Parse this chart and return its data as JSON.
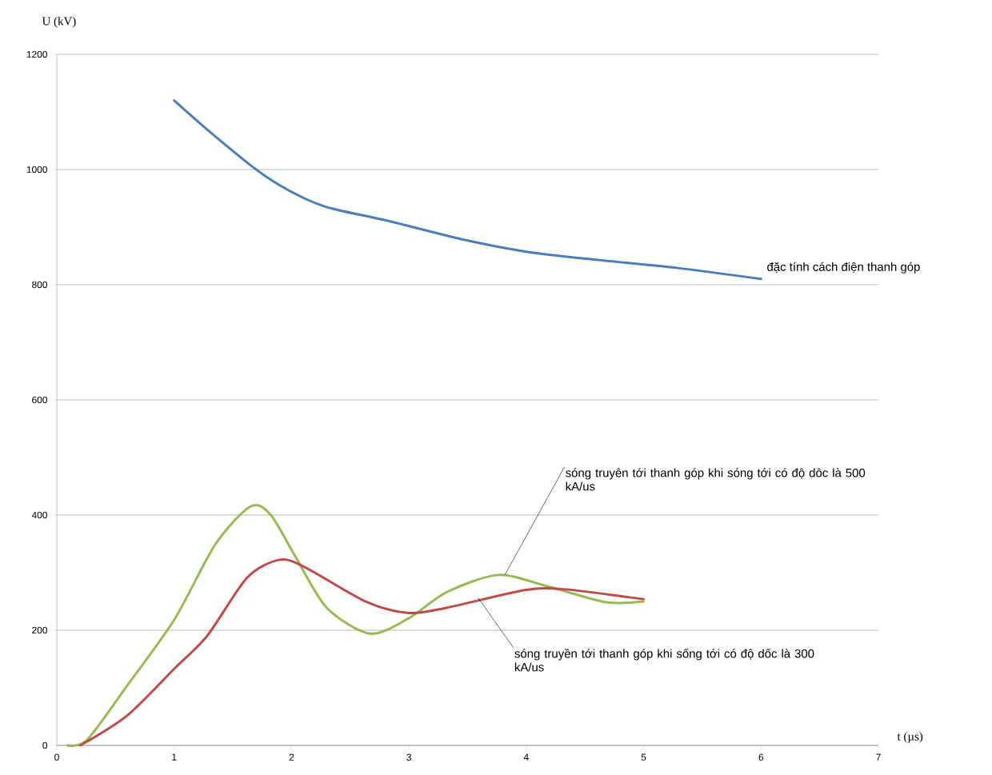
{
  "chart_data": {
    "type": "line",
    "xlabel": "t (µs)",
    "ylabel": "U (kV)",
    "xlim": [
      0,
      7
    ],
    "ylim": [
      0,
      1200
    ],
    "xticks": [
      0,
      1,
      2,
      3,
      4,
      5,
      6,
      7
    ],
    "yticks": [
      0,
      200,
      400,
      600,
      800,
      1000,
      1200
    ],
    "grid": "y",
    "marker": "none",
    "line_style": "solid",
    "series": [
      {
        "color": "#4a7ebb",
        "x": [
          1,
          1.29,
          1.68,
          1.88,
          2.11,
          2.33,
          2.84,
          3.47,
          4.01,
          4.61,
          5.29,
          6
        ],
        "values": [
          1120,
          1068,
          1003,
          975,
          950,
          933,
          910,
          878,
          857,
          843,
          829,
          810
        ]
      },
      {
        "color": "#98b954",
        "x": [
          0.09,
          0.26,
          0.6,
          1,
          1.35,
          1.65,
          1.82,
          2.03,
          2.3,
          2.67,
          3,
          3.32,
          3.76,
          4.17,
          4.67,
          5
        ],
        "values": [
          0,
          10,
          104,
          218,
          349,
          415,
          401,
          329,
          239,
          194,
          221,
          266,
          296,
          277,
          249,
          250
        ]
      },
      {
        "color": "#be4b48",
        "x": [
          0.2,
          0.6,
          1,
          1.28,
          1.62,
          1.89,
          2.1,
          2.64,
          3,
          3.32,
          4,
          4.33,
          5
        ],
        "values": [
          0,
          52,
          133,
          190,
          291,
          322,
          311,
          249,
          230,
          239,
          270,
          271,
          254
        ]
      }
    ],
    "annotations": [
      {
        "text": "đặc tính cách điện thanh góp",
        "x": 6,
        "y": 810
      },
      {
        "text": "sóng truyên tới thanh  góp khi sóng tới có độ dôc là 500 kA/us",
        "x": 3.82,
        "y": 297
      },
      {
        "text": "sóng truyền tới thanh  góp khi sống tới có độ dốc là 300 kA/us",
        "x": 3.59,
        "y": 256
      }
    ]
  }
}
